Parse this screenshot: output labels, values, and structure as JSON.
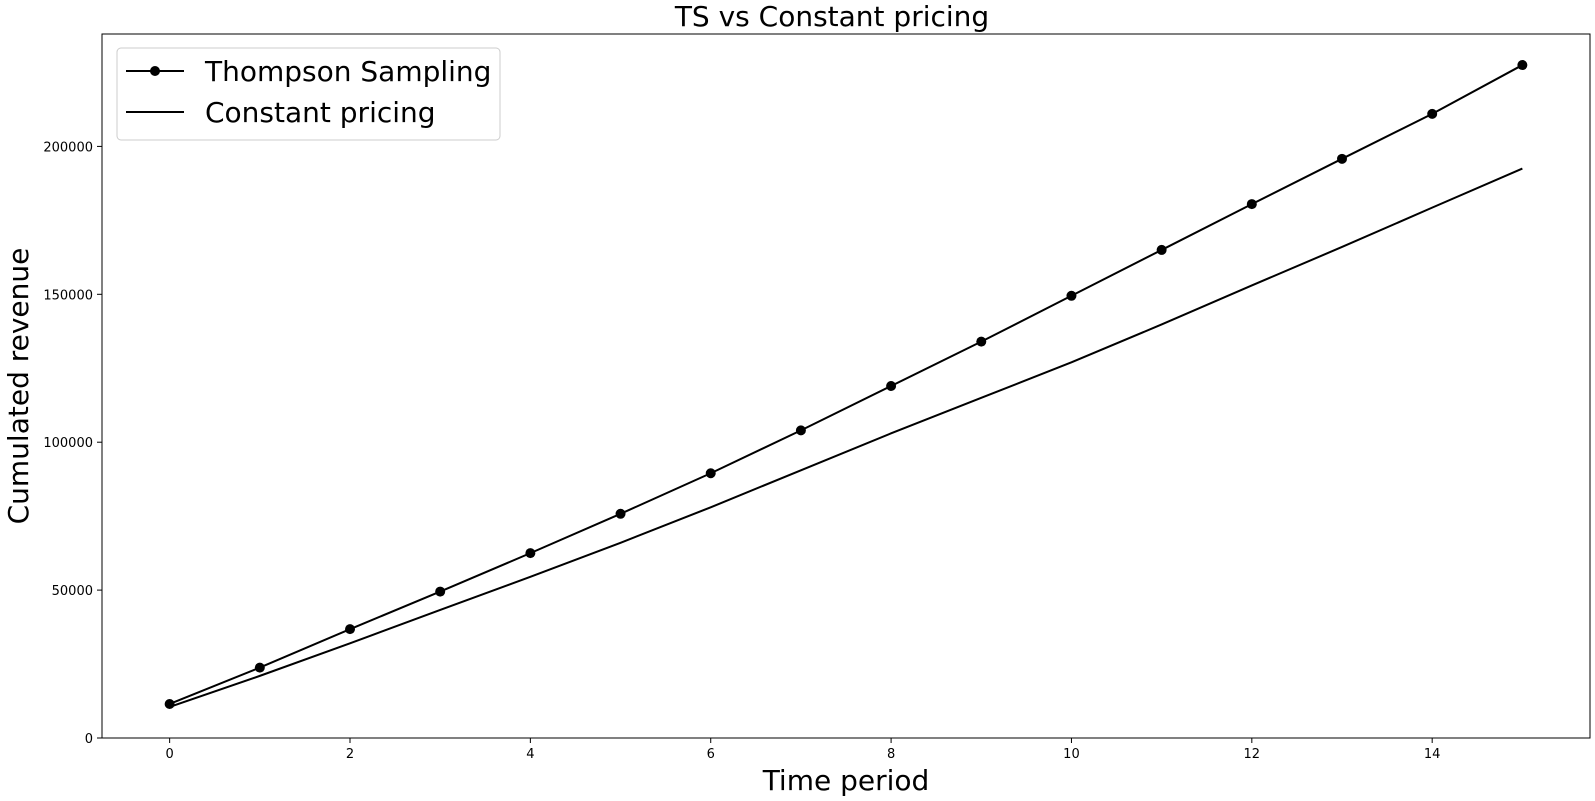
{
  "chart_data": {
    "type": "line",
    "title": "TS vs Constant pricing",
    "xlabel": "Time period",
    "ylabel": "Cumulated revenue",
    "x": [
      0,
      1,
      2,
      3,
      4,
      5,
      6,
      7,
      8,
      9,
      10,
      11,
      12,
      13,
      14,
      15
    ],
    "xlim": [
      -0.75,
      15.75
    ],
    "ylim": [
      0,
      238000
    ],
    "xticks": [
      0,
      2,
      4,
      6,
      8,
      10,
      12,
      14
    ],
    "xtick_labels": [
      "0",
      "2",
      "4",
      "6",
      "8",
      "10",
      "12",
      "14"
    ],
    "yticks": [
      0,
      50000,
      100000,
      150000,
      200000
    ],
    "ytick_labels": [
      "0",
      "50000",
      "100000",
      "150000",
      "200000"
    ],
    "grid": false,
    "legend_position": "top-left",
    "series": [
      {
        "name": "Thompson Sampling",
        "color": "#000000",
        "marker": "circle",
        "values": [
          11500,
          23800,
          36800,
          49500,
          62500,
          75800,
          89500,
          104000,
          119000,
          134000,
          149500,
          165000,
          180500,
          195800,
          211000,
          227500
        ]
      },
      {
        "name": "Constant pricing",
        "color": "#000000",
        "marker": "none",
        "values": [
          10500,
          21000,
          32000,
          43300,
          54500,
          66000,
          78000,
          90500,
          103000,
          115000,
          127000,
          139800,
          153000,
          166000,
          179300,
          192500
        ]
      }
    ]
  }
}
